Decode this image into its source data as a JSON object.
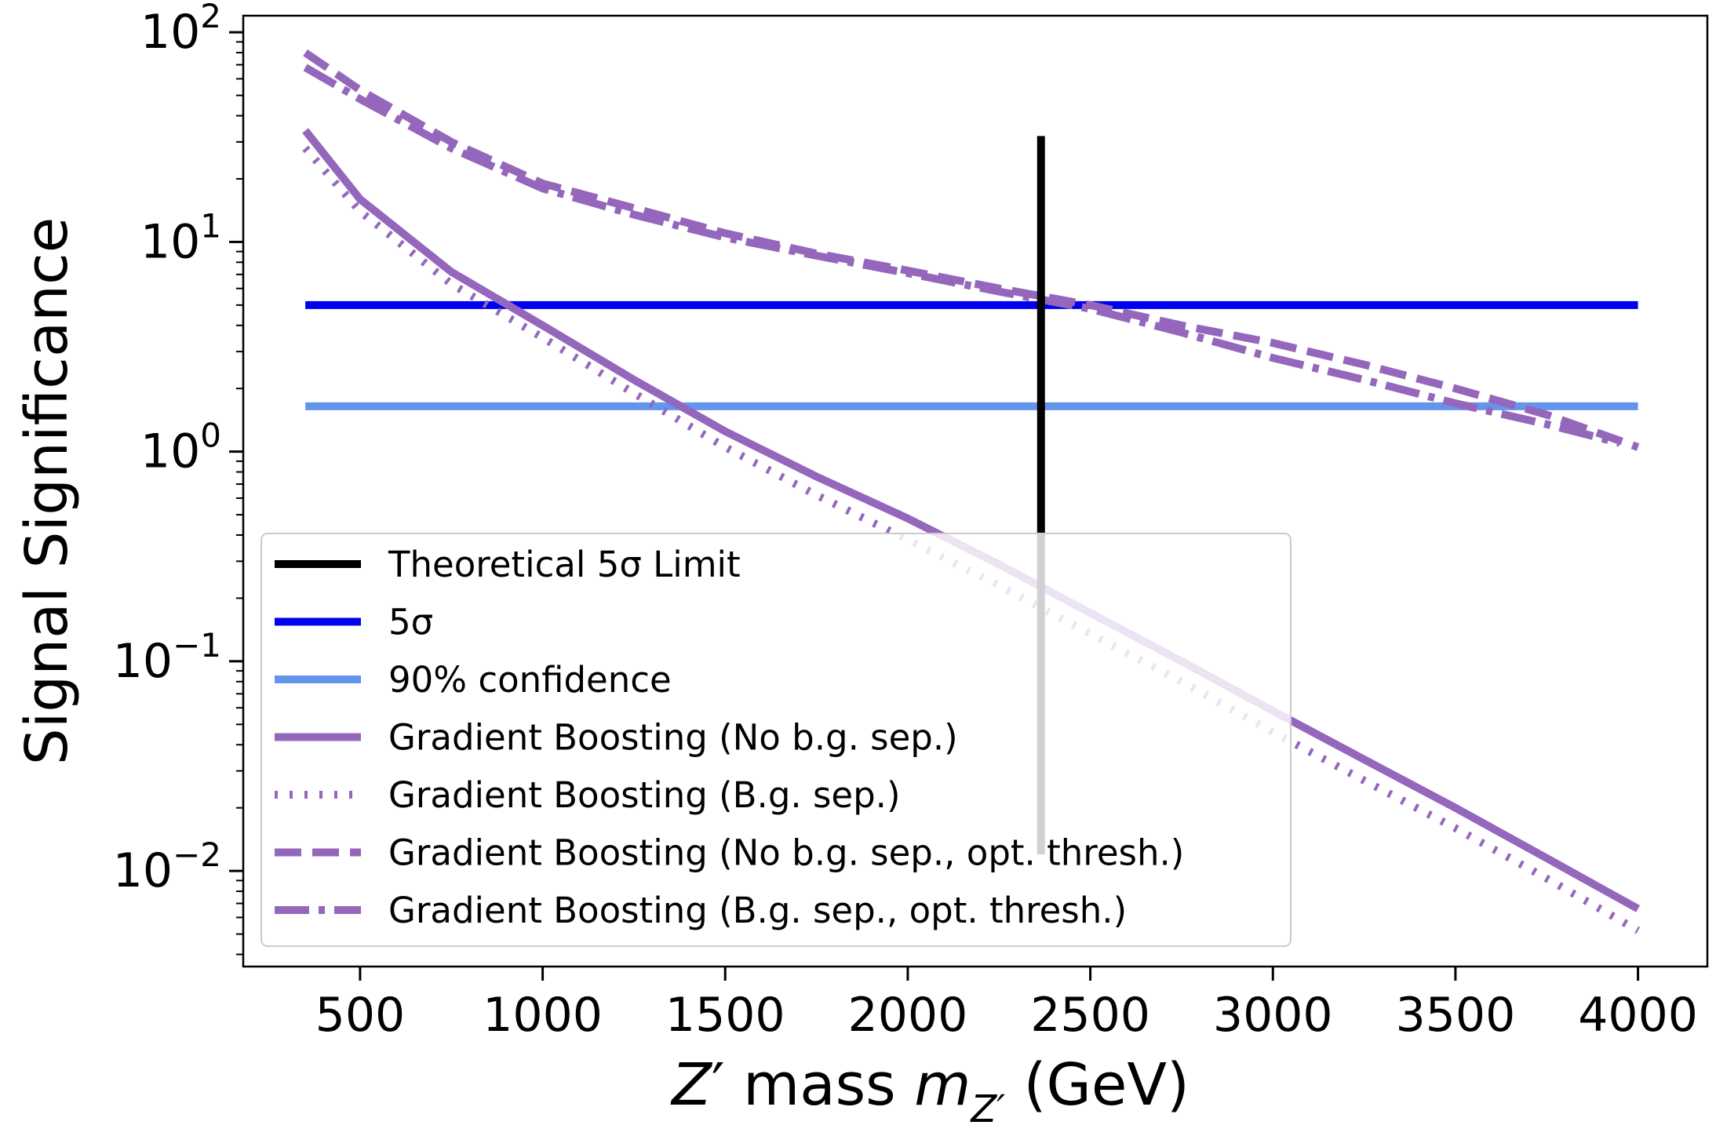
{
  "chart_data": {
    "type": "line",
    "title": "",
    "xlabel": "Z′ mass m",
    "xlabel_subscript": "Z′",
    "xlabel_unit": "(GeV)",
    "ylabel": "Signal Significance",
    "xlim": [
      180,
      4190
    ],
    "ylim": [
      0.0035,
      120
    ],
    "y_scale": "log",
    "grid": false,
    "legend_position": "lower-left",
    "x_ticks": [
      500,
      1000,
      1500,
      2000,
      2500,
      3000,
      3500,
      4000
    ],
    "x_tick_labels": [
      "500",
      "1000",
      "1500",
      "2000",
      "2500",
      "3000",
      "3500",
      "4000"
    ],
    "y_ticks": [
      {
        "value": 100,
        "base": "10",
        "exp": "2"
      },
      {
        "value": 10,
        "base": "10",
        "exp": "1"
      },
      {
        "value": 1,
        "base": "10",
        "exp": "0"
      },
      {
        "value": 0.1,
        "base": "10",
        "exp": "−1"
      },
      {
        "value": 0.01,
        "base": "10",
        "exp": "−2"
      }
    ],
    "vertical_line": {
      "name": "Theoretical 5σ Limit",
      "x": 2365,
      "y_min": 0.012,
      "y_max": 32,
      "color": "#000000",
      "style": "solid"
    },
    "horizontal_lines": [
      {
        "name": "5σ",
        "y": 5,
        "x_range": [
          350,
          4000
        ],
        "color": "#0000ee",
        "style": "solid"
      },
      {
        "name": "90% confidence",
        "y": 1.645,
        "x_range": [
          350,
          4000
        ],
        "color": "#6495ed",
        "style": "solid"
      }
    ],
    "series": [
      {
        "name": "Gradient Boosting (No b.g. sep.)",
        "color": "#9467bd",
        "style": "solid",
        "x": [
          350,
          500,
          750,
          1000,
          1250,
          1500,
          1750,
          2000,
          2250,
          2500,
          2750,
          3000,
          3250,
          3500,
          3750,
          4000
        ],
        "values": [
          34,
          16,
          7.2,
          4.0,
          2.2,
          1.25,
          0.76,
          0.48,
          0.29,
          0.17,
          0.1,
          0.058,
          0.034,
          0.02,
          0.0115,
          0.0066
        ]
      },
      {
        "name": "Gradient Boosting (B.g. sep.)",
        "color": "#9467bd",
        "style": "dotted",
        "x": [
          350,
          500,
          750,
          1000,
          1250,
          1500,
          1750,
          2000,
          2250,
          2500,
          2750,
          3000,
          3250,
          3500,
          3750,
          4000
        ],
        "values": [
          28,
          14,
          6.3,
          3.5,
          1.9,
          1.05,
          0.62,
          0.38,
          0.23,
          0.135,
          0.08,
          0.046,
          0.027,
          0.016,
          0.0092,
          0.0052
        ]
      },
      {
        "name": "Gradient Boosting (No b.g. sep., opt. thresh.)",
        "color": "#9467bd",
        "style": "dashed",
        "x": [
          350,
          500,
          750,
          1000,
          1250,
          1500,
          1750,
          2000,
          2250,
          2500,
          2750,
          3000,
          3250,
          3500,
          3750,
          4000
        ],
        "values": [
          80,
          53,
          30,
          19,
          14.5,
          11,
          8.8,
          7.3,
          6.0,
          5.0,
          4.0,
          3.3,
          2.6,
          2.0,
          1.5,
          1.05
        ]
      },
      {
        "name": "Gradient Boosting (B.g. sep., opt. thresh.)",
        "color": "#9467bd",
        "style": "dashdot",
        "x": [
          350,
          500,
          750,
          1000,
          1250,
          1500,
          1750,
          2000,
          2250,
          2500,
          2750,
          3000,
          3250,
          3500,
          3750,
          3950
        ],
        "values": [
          68,
          48,
          28,
          18,
          13.5,
          10.5,
          8.6,
          7.1,
          5.8,
          4.8,
          3.7,
          2.8,
          2.2,
          1.7,
          1.35,
          1.1
        ]
      }
    ]
  }
}
